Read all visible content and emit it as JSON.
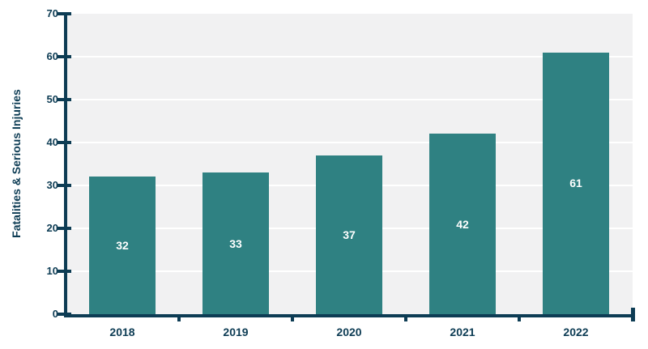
{
  "chart_data": {
    "type": "bar",
    "categories": [
      "2018",
      "2019",
      "2020",
      "2021",
      "2022"
    ],
    "values": [
      32,
      33,
      37,
      42,
      61
    ],
    "value_labels": [
      "32",
      "33",
      "37",
      "42",
      "61"
    ],
    "title": "",
    "xlabel": "",
    "ylabel": "Fatalities & Serious Injuries",
    "ylim": [
      0,
      70
    ],
    "yticks": [
      0,
      10,
      20,
      30,
      40,
      50,
      60,
      70
    ],
    "grid": true,
    "legend": "none",
    "colors": {
      "bar": "#2F8182",
      "axis": "#0D3C54",
      "plot_background": "#F1F1F2",
      "gridline": "#FFFFFF",
      "value_label": "#FFFFFF"
    }
  }
}
